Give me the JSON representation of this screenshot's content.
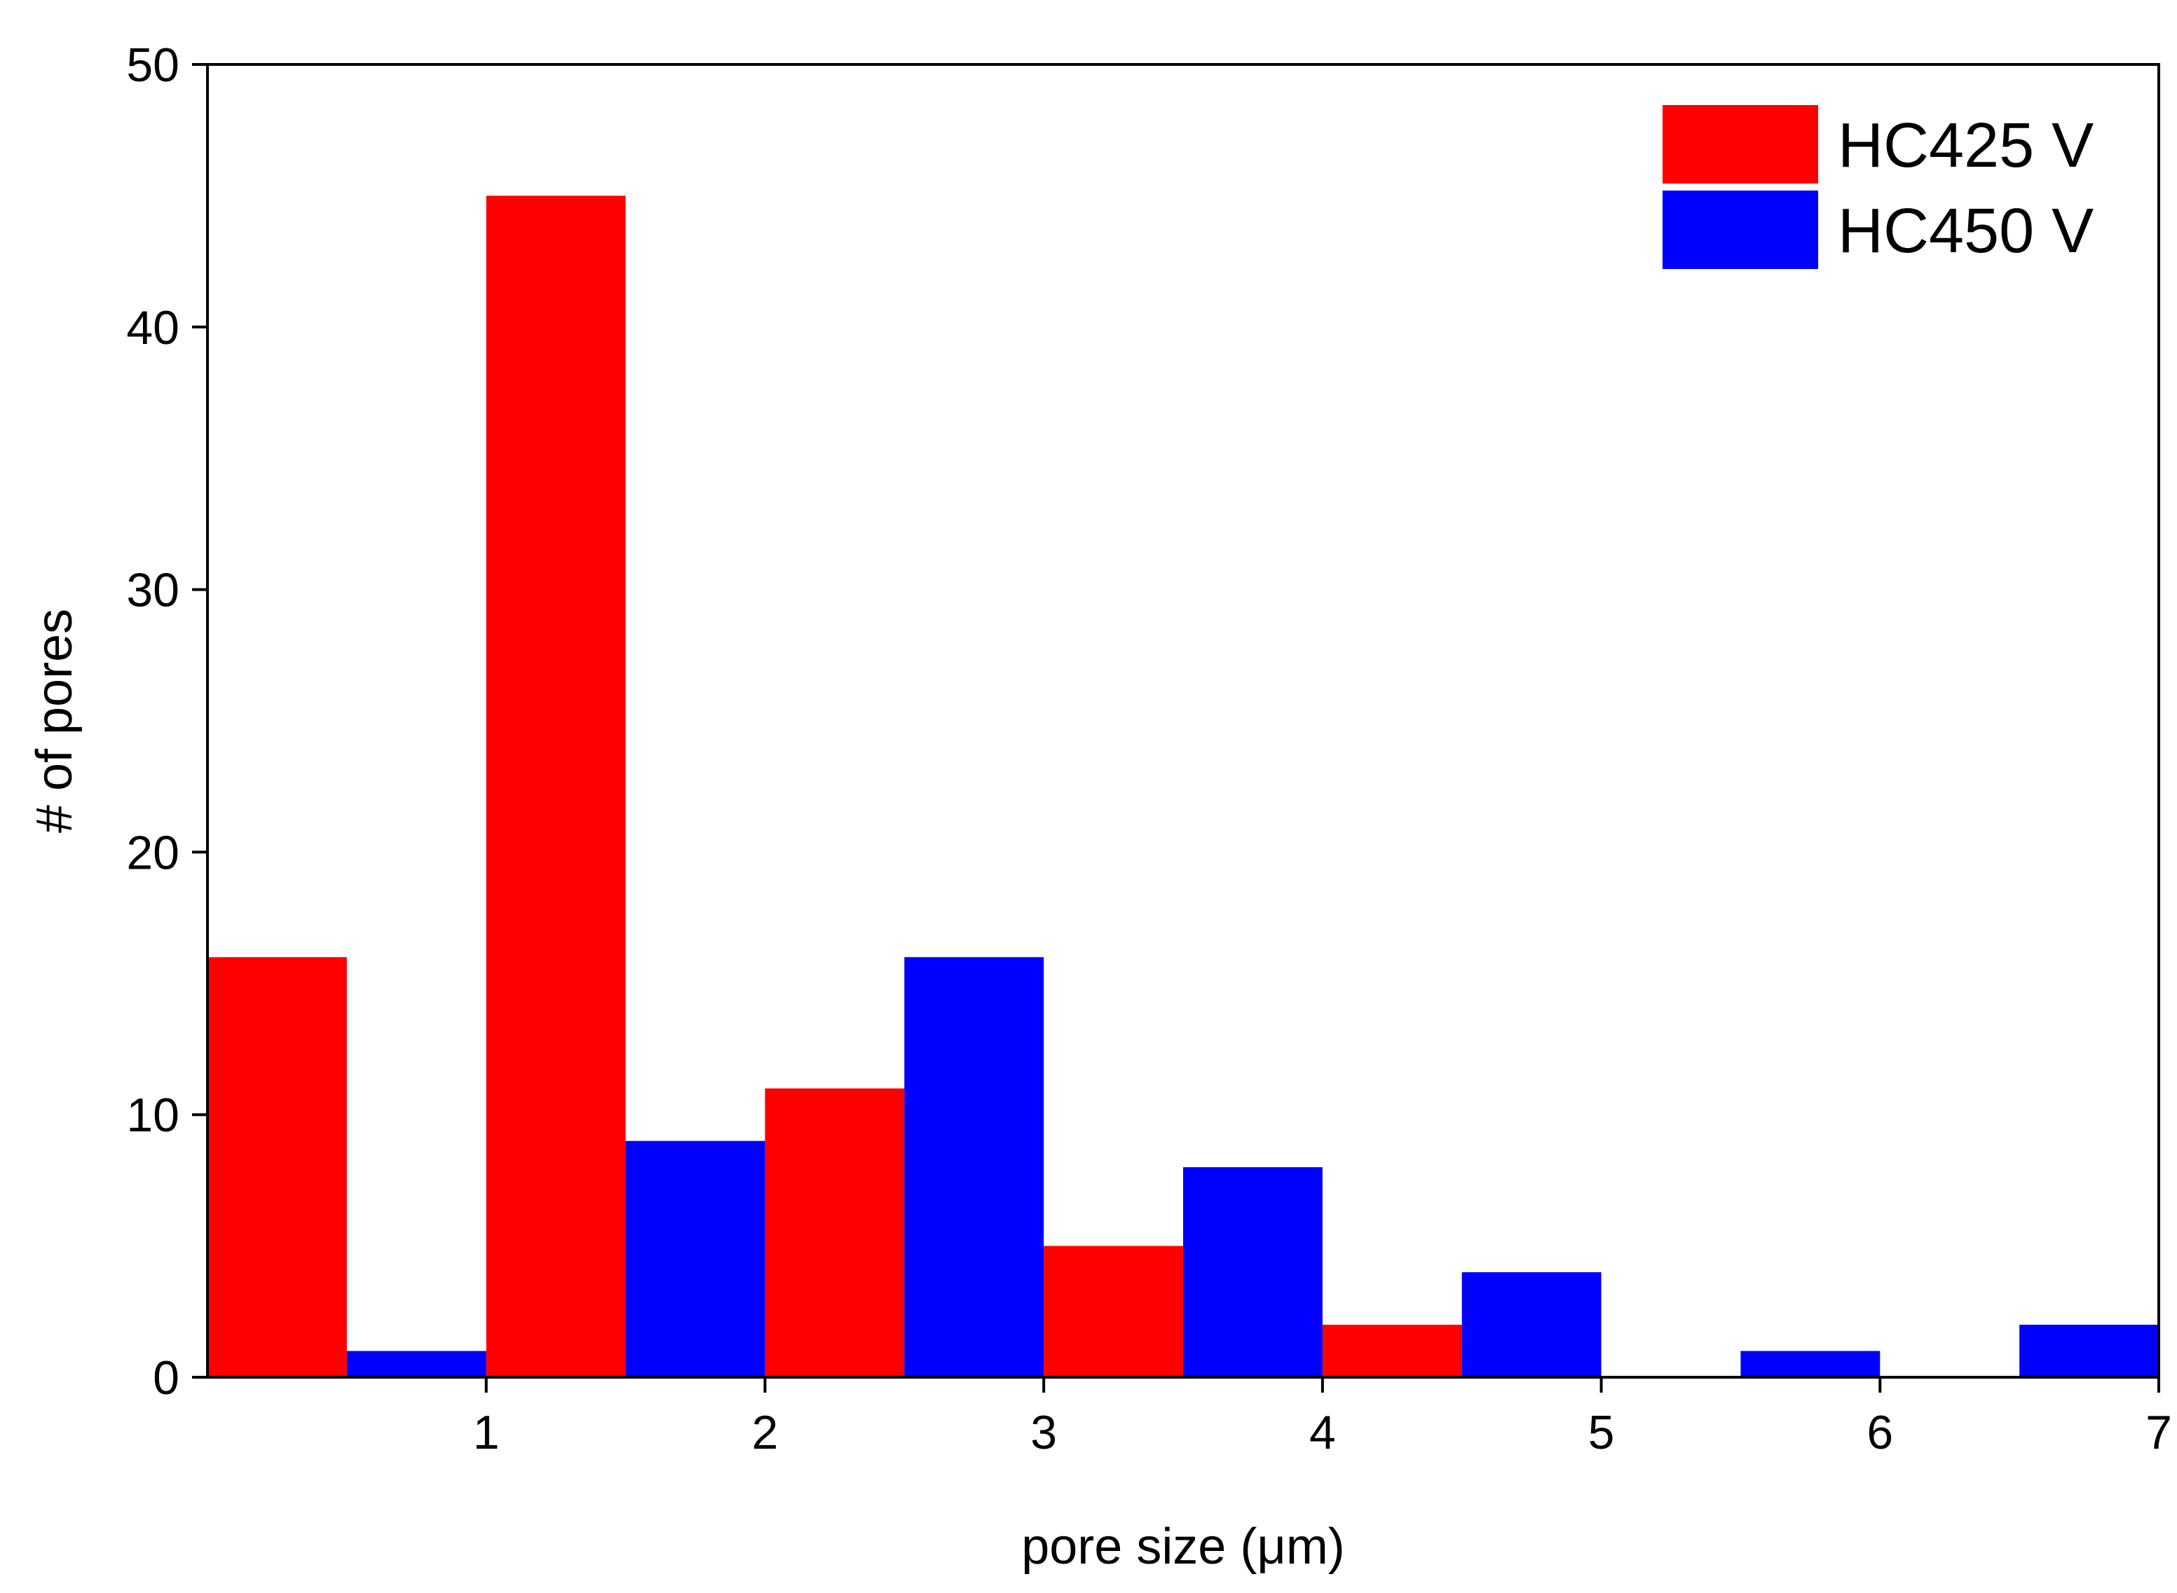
{
  "chart_data": {
    "type": "bar",
    "title": "",
    "xlabel": "pore size (μm)",
    "ylabel": "# of pores",
    "xlim": [
      0,
      7
    ],
    "ylim": [
      0,
      50
    ],
    "xticks": [
      1,
      2,
      3,
      4,
      5,
      6,
      7
    ],
    "yticks": [
      0,
      10,
      20,
      30,
      40,
      50
    ],
    "bin_width": 0.5,
    "grid": false,
    "legend_position": "top-right",
    "series": [
      {
        "name": "HC425 V",
        "color": "#ff0000",
        "bins": [
          {
            "x_start": 0.0,
            "x_end": 0.5,
            "value": 16
          },
          {
            "x_start": 1.0,
            "x_end": 1.5,
            "value": 45
          },
          {
            "x_start": 2.0,
            "x_end": 2.5,
            "value": 11
          },
          {
            "x_start": 3.0,
            "x_end": 3.5,
            "value": 5
          },
          {
            "x_start": 4.0,
            "x_end": 4.5,
            "value": 2
          }
        ]
      },
      {
        "name": "HC450 V",
        "color": "#0000ff",
        "bins": [
          {
            "x_start": 0.5,
            "x_end": 1.0,
            "value": 1
          },
          {
            "x_start": 1.5,
            "x_end": 2.0,
            "value": 9
          },
          {
            "x_start": 2.5,
            "x_end": 3.0,
            "value": 16
          },
          {
            "x_start": 3.5,
            "x_end": 4.0,
            "value": 8
          },
          {
            "x_start": 4.5,
            "x_end": 5.0,
            "value": 4
          },
          {
            "x_start": 5.5,
            "x_end": 6.0,
            "value": 1
          },
          {
            "x_start": 6.5,
            "x_end": 7.0,
            "value": 2
          }
        ]
      }
    ]
  }
}
